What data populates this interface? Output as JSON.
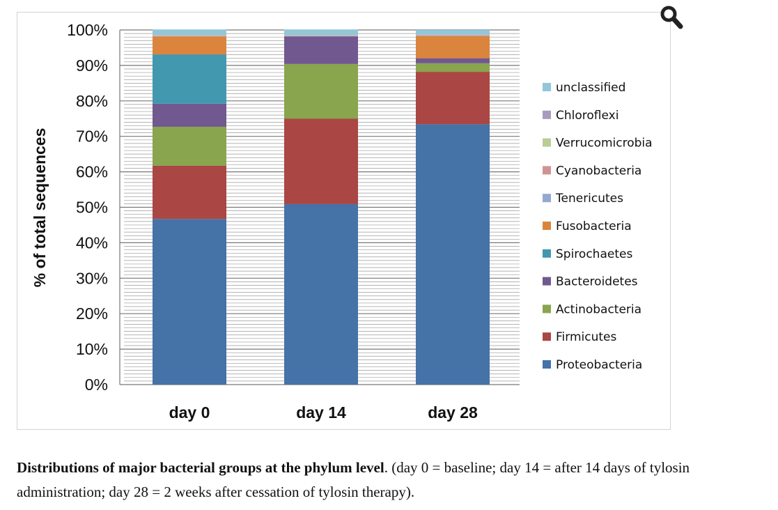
{
  "chart_data": {
    "type": "bar",
    "stacked": true,
    "title": "",
    "xlabel": "",
    "ylabel": "% of total sequences",
    "ylim": [
      0,
      100
    ],
    "yticks": [
      "0%",
      "10%",
      "20%",
      "30%",
      "40%",
      "50%",
      "60%",
      "70%",
      "80%",
      "90%",
      "100%"
    ],
    "categories": [
      "day 0",
      "day 14",
      "day 28"
    ],
    "series": [
      {
        "name": "Proteobacteria",
        "color": "#4572a7",
        "values": [
          46.7,
          50.9,
          73.4
        ]
      },
      {
        "name": "Firmicutes",
        "color": "#aa4643",
        "values": [
          15.0,
          24.1,
          14.8
        ]
      },
      {
        "name": "Actinobacteria",
        "color": "#89a54e",
        "values": [
          11.0,
          15.4,
          2.4
        ]
      },
      {
        "name": "Bacteroidetes",
        "color": "#71588f",
        "values": [
          6.5,
          7.8,
          1.4
        ]
      },
      {
        "name": "Spirochaetes",
        "color": "#4198af",
        "values": [
          13.9,
          0.0,
          0.0
        ]
      },
      {
        "name": "Fusobacteria",
        "color": "#db843d",
        "values": [
          5.1,
          0.0,
          6.3
        ]
      },
      {
        "name": "Tenericutes",
        "color": "#93a9cf",
        "values": [
          0.1,
          0.1,
          0.2
        ]
      },
      {
        "name": "Cyanobacteria",
        "color": "#d19392",
        "values": [
          0.1,
          0.1,
          0.1
        ]
      },
      {
        "name": "Verrucomicrobia",
        "color": "#b9cd96",
        "values": [
          0.1,
          0.1,
          0.1
        ]
      },
      {
        "name": "Chloroflexi",
        "color": "#a99bbd",
        "values": [
          0.1,
          0.1,
          0.1
        ]
      },
      {
        "name": "unclassified",
        "color": "#92c6da",
        "values": [
          1.5,
          1.5,
          1.2
        ]
      }
    ],
    "legend_position": "right",
    "legend_order": [
      "unclassified",
      "Chloroflexi",
      "Verrucomicrobia",
      "Cyanobacteria",
      "Tenericutes",
      "Fusobacteria",
      "Spirochaetes",
      "Bacteroidetes",
      "Actinobacteria",
      "Firmicutes",
      "Proteobacteria"
    ],
    "grid": true
  },
  "caption": {
    "bold": "Distributions of major bacterial groups at the phylum level",
    "rest": ". (day 0 = baseline; day 14 = after 14 days of tylosin administration; day 28 = 2 weeks after cessation of tylosin therapy)."
  },
  "icons": {
    "zoom": "magnifier-icon"
  }
}
